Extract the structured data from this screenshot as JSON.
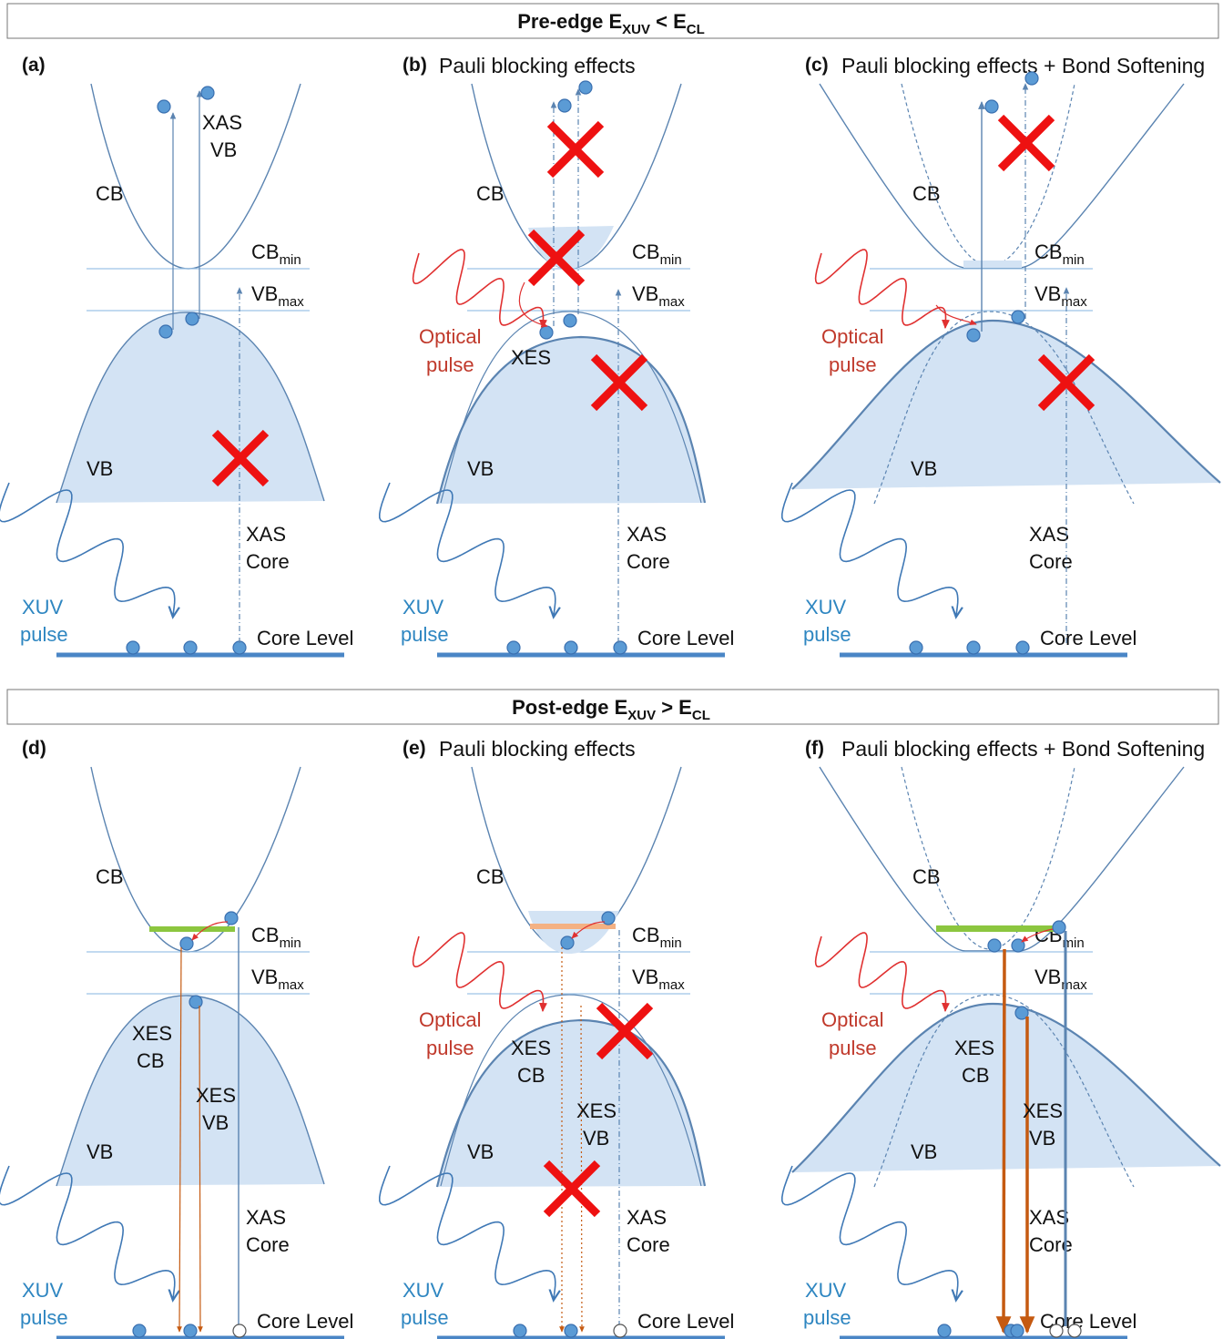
{
  "sections": {
    "pre": {
      "title_main": "Pre-edge E",
      "title_sub1": "XUV",
      "title_op": " < E",
      "title_sub2": "CL"
    },
    "post": {
      "title_main": "Post-edge E",
      "title_sub1": "XUV",
      "title_op": " > E",
      "title_sub2": "CL"
    }
  },
  "panels": [
    {
      "tag": "(a)",
      "title": ""
    },
    {
      "tag": "(b)",
      "title": "Pauli blocking effects"
    },
    {
      "tag": "(c)",
      "title": "Pauli blocking effects + Bond Softening"
    },
    {
      "tag": "(d)",
      "title": ""
    },
    {
      "tag": "(e)",
      "title": "Pauli blocking effects"
    },
    {
      "tag": "(f)",
      "title": "Pauli blocking effects + Bond Softening"
    }
  ],
  "labels": {
    "cb": "CB",
    "vb": "VB",
    "cb_min_main": "CB",
    "cb_min_sub": "min",
    "vb_max_main": "VB",
    "vb_max_sub": "max",
    "core_level": "Core Level",
    "xuv_line1": "XUV",
    "xuv_line2": "pulse",
    "optical_line1": "Optical",
    "optical_line2": "pulse",
    "xas": "XAS",
    "xas_vb_line2": "VB",
    "xas_core_line2": "Core",
    "xes": "XES",
    "xes_cb_line2": "CB",
    "xes_vb_line2": "VB"
  },
  "colors": {
    "band_line": "#5b84b1",
    "band_fill": "#d3e3f4",
    "level_line": "#9dc3e6",
    "core_level": "#4a86c6",
    "electron": "#5b9bd5",
    "electron_stroke": "#3a70b0",
    "blocked_cross": "#ee1111",
    "optical": "#e03030",
    "xuv": "#3f78b5",
    "xuv_text": "#2e86c1",
    "optical_text": "#c0392b",
    "xes_arrow": "#c55a11",
    "cb_fill_green": "#8cc63f",
    "cb_fill_orange": "#f4b183"
  }
}
